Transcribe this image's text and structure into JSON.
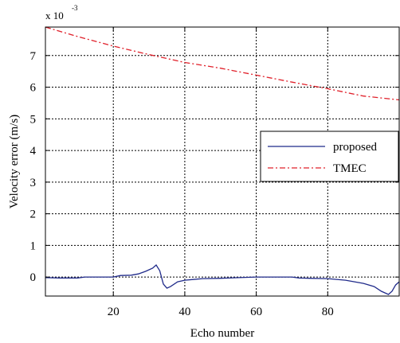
{
  "chart_data": {
    "type": "line",
    "xlabel": "Echo number",
    "ylabel": "Velocity error (m/s)",
    "y_scale_note": {
      "base": "x 10",
      "exponent": "-3"
    },
    "xlim": [
      1,
      100
    ],
    "ylim": [
      -0.6,
      7.9
    ],
    "x_ticks": [
      20,
      40,
      60,
      80
    ],
    "y_ticks": [
      0,
      1,
      2,
      3,
      4,
      5,
      6,
      7
    ],
    "grid": true,
    "legend_position": "right-middle",
    "series": [
      {
        "name": "proposed",
        "color": "#1f2a8a",
        "style": "solid",
        "points": [
          [
            1,
            -0.02
          ],
          [
            5,
            -0.03
          ],
          [
            10,
            -0.03
          ],
          [
            12,
            0.0
          ],
          [
            16,
            0.0
          ],
          [
            20,
            0.0
          ],
          [
            22,
            0.05
          ],
          [
            25,
            0.06
          ],
          [
            27,
            0.1
          ],
          [
            29,
            0.18
          ],
          [
            31,
            0.28
          ],
          [
            32,
            0.38
          ],
          [
            33,
            0.2
          ],
          [
            34,
            -0.22
          ],
          [
            35,
            -0.35
          ],
          [
            36,
            -0.3
          ],
          [
            38,
            -0.15
          ],
          [
            40,
            -0.1
          ],
          [
            42,
            -0.08
          ],
          [
            45,
            -0.05
          ],
          [
            50,
            -0.04
          ],
          [
            55,
            -0.02
          ],
          [
            60,
            0.0
          ],
          [
            65,
            0.0
          ],
          [
            70,
            0.0
          ],
          [
            72,
            -0.03
          ],
          [
            75,
            -0.04
          ],
          [
            80,
            -0.05
          ],
          [
            85,
            -0.1
          ],
          [
            90,
            -0.2
          ],
          [
            93,
            -0.3
          ],
          [
            95,
            -0.45
          ],
          [
            97,
            -0.55
          ],
          [
            98,
            -0.45
          ],
          [
            99,
            -0.25
          ],
          [
            100,
            -0.15
          ]
        ]
      },
      {
        "name": "TMEC",
        "color": "#e0202a",
        "style": "dashdot",
        "points": [
          [
            1,
            7.9
          ],
          [
            10,
            7.6
          ],
          [
            20,
            7.3
          ],
          [
            30,
            7.03
          ],
          [
            40,
            6.78
          ],
          [
            50,
            6.6
          ],
          [
            60,
            6.38
          ],
          [
            70,
            6.16
          ],
          [
            80,
            5.95
          ],
          [
            90,
            5.72
          ],
          [
            100,
            5.6
          ]
        ]
      }
    ]
  }
}
